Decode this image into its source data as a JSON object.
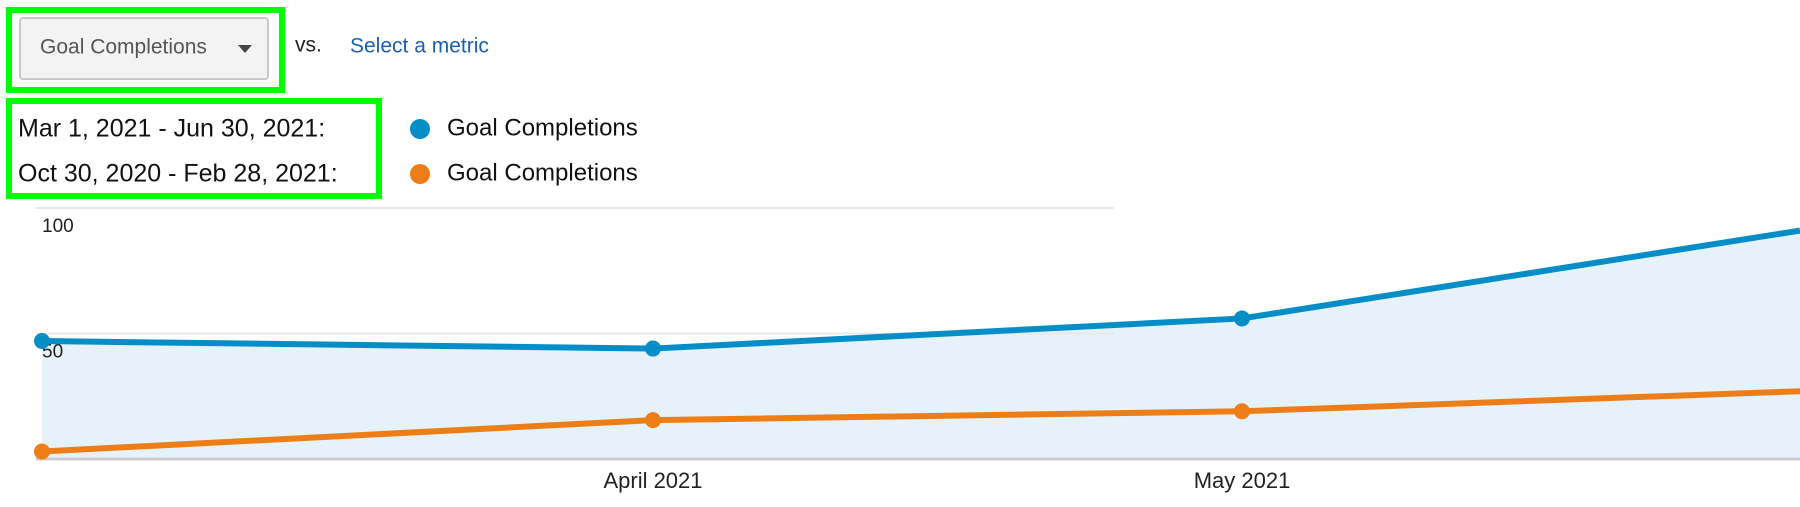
{
  "controls": {
    "metric": "Goal Completions",
    "vs": "vs.",
    "select_metric": "Select a metric"
  },
  "date_ranges": [
    "Mar 1, 2021 - Jun 30, 2021:",
    "Oct 30, 2020 - Feb 28, 2021:"
  ],
  "chart_data": {
    "type": "line",
    "categories": [
      null,
      "April 2021",
      "May 2021",
      null
    ],
    "series": [
      {
        "name": "Goal Completions",
        "color": "#058dc7",
        "values": [
          47,
          44,
          56,
          91
        ]
      },
      {
        "name": "Goal Completions",
        "color": "#ed7e17",
        "values": [
          3,
          15.5,
          19,
          27
        ]
      }
    ],
    "ylim": [
      0,
      100
    ],
    "yticks": [
      50,
      100
    ],
    "grid": true,
    "area": true
  }
}
